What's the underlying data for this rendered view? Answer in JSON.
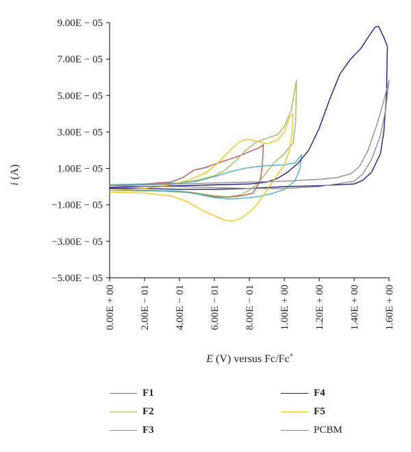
{
  "chart_data": {
    "type": "line",
    "xlabel_parts": [
      "E",
      " (V) versus Fc/Fc",
      "+"
    ],
    "ylabel_parts": [
      "i",
      " (A)"
    ],
    "xlim": [
      0,
      1.6
    ],
    "ylim": [
      -5e-05,
      9e-05
    ],
    "x_ticks": [
      0,
      0.2,
      0.4,
      0.6,
      0.8,
      1.0,
      1.2,
      1.4,
      1.6
    ],
    "x_tick_labels": [
      "0.00E + 00",
      "2.00E − 01",
      "4.00E − 01",
      "6.00E − 01",
      "8.00E − 01",
      "1.00E + 00",
      "1.20E + 00",
      "1.40E + 00",
      "1.60E + 00"
    ],
    "y_ticks": [
      9e-05,
      7e-05,
      5e-05,
      3e-05,
      1e-05,
      -1e-05,
      -3e-05,
      -5e-05
    ],
    "y_tick_labels": [
      "9.00E − 05",
      "7.00E − 05",
      "5.00E − 05",
      "3.00E − 05",
      "1.00E − 05",
      "−1.00E − 05",
      "−3.00E − 05",
      "−5.00E − 05"
    ],
    "grid": false,
    "legend_position": "bottom",
    "series": [
      {
        "name": "F1",
        "color": "#c0504d",
        "points": [
          [
            0,
            1e-06
          ],
          [
            0.2,
            1.5e-06
          ],
          [
            0.35,
            2.5e-06
          ],
          [
            0.42,
            5e-06
          ],
          [
            0.48,
            9e-06
          ],
          [
            0.55,
            1.05e-05
          ],
          [
            0.62,
            1.3e-05
          ],
          [
            0.7,
            1.55e-05
          ],
          [
            0.76,
            1.75e-05
          ],
          [
            0.82,
            2e-05
          ],
          [
            0.86,
            2.15e-05
          ],
          [
            0.88,
            2.3e-05
          ],
          [
            0.875,
            1.2e-05
          ],
          [
            0.865,
            5e-06
          ],
          [
            0.85,
            1e-06
          ],
          [
            0.82,
            -3.5e-06
          ],
          [
            0.76,
            -5e-06
          ],
          [
            0.68,
            -5.8e-06
          ],
          [
            0.6,
            -5.5e-06
          ],
          [
            0.5,
            -3.5e-06
          ],
          [
            0.4,
            -2.5e-06
          ],
          [
            0.2,
            -2e-06
          ],
          [
            0,
            -2e-06
          ]
        ]
      },
      {
        "name": "F2",
        "color": "#9bbb59",
        "points": [
          [
            0,
            5e-07
          ],
          [
            0.2,
            1e-06
          ],
          [
            0.4,
            2e-06
          ],
          [
            0.5,
            3.5e-06
          ],
          [
            0.6,
            6e-06
          ],
          [
            0.66,
            9e-06
          ],
          [
            0.72,
            1.4e-05
          ],
          [
            0.78,
            2e-05
          ],
          [
            0.84,
            2.45e-05
          ],
          [
            0.9,
            2.65e-05
          ],
          [
            0.96,
            2.85e-05
          ],
          [
            1.0,
            3.3e-05
          ],
          [
            1.04,
            4.2e-05
          ],
          [
            1.07,
            5.85e-05
          ],
          [
            1.065,
            3.5e-05
          ],
          [
            1.05,
            2.4e-05
          ],
          [
            1.0,
            1.8e-05
          ],
          [
            0.95,
            1.4e-05
          ],
          [
            0.9,
            8e-06
          ],
          [
            0.85,
            2e-06
          ],
          [
            0.8,
            -2e-06
          ],
          [
            0.75,
            -4.5e-06
          ],
          [
            0.68,
            -5.5e-06
          ],
          [
            0.6,
            -5e-06
          ],
          [
            0.5,
            -3.5e-06
          ],
          [
            0.3,
            -2.5e-06
          ],
          [
            0,
            -2e-06
          ]
        ]
      },
      {
        "name": "F3",
        "color": "#4bacc6",
        "points": [
          [
            0,
            1e-06
          ],
          [
            0.2,
            1.5e-06
          ],
          [
            0.4,
            2e-06
          ],
          [
            0.5,
            3e-06
          ],
          [
            0.6,
            5.5e-06
          ],
          [
            0.7,
            8.5e-06
          ],
          [
            0.8,
            1.05e-05
          ],
          [
            0.9,
            1.15e-05
          ],
          [
            1.0,
            1.2e-05
          ],
          [
            1.06,
            1.3e-05
          ],
          [
            1.1,
            1.75e-05
          ],
          [
            1.09,
            1e-05
          ],
          [
            1.06,
            3e-06
          ],
          [
            1.0,
            -1.5e-06
          ],
          [
            0.94,
            -3.5e-06
          ],
          [
            0.85,
            -5.5e-06
          ],
          [
            0.75,
            -6.5e-06
          ],
          [
            0.68,
            -6.8e-06
          ],
          [
            0.6,
            -6e-06
          ],
          [
            0.5,
            -4e-06
          ],
          [
            0.4,
            -2.5e-06
          ],
          [
            0.2,
            -2e-06
          ],
          [
            0,
            -2e-06
          ]
        ]
      },
      {
        "name": "F4",
        "color": "#1f1a8c",
        "points": [
          [
            0,
            -5e-07
          ],
          [
            0.2,
            0
          ],
          [
            0.4,
            5e-07
          ],
          [
            0.6,
            1e-06
          ],
          [
            0.8,
            1.5e-06
          ],
          [
            0.9,
            2.5e-06
          ],
          [
            0.96,
            4.5e-06
          ],
          [
            1.02,
            8e-06
          ],
          [
            1.08,
            1.3e-05
          ],
          [
            1.14,
            2e-05
          ],
          [
            1.2,
            3.2e-05
          ],
          [
            1.26,
            4.8e-05
          ],
          [
            1.32,
            6.2e-05
          ],
          [
            1.38,
            7e-05
          ],
          [
            1.44,
            7.6e-05
          ],
          [
            1.48,
            8.2e-05
          ],
          [
            1.52,
            8.75e-05
          ],
          [
            1.54,
            8.8e-05
          ],
          [
            1.57,
            8.2e-05
          ],
          [
            1.59,
            7.7e-05
          ],
          [
            1.585,
            5e-05
          ],
          [
            1.57,
            3e-05
          ],
          [
            1.55,
            1.8e-05
          ],
          [
            1.5,
            8e-06
          ],
          [
            1.45,
            3.5e-06
          ],
          [
            1.4,
            1.5e-06
          ],
          [
            1.2,
            5e-07
          ],
          [
            1.0,
            0
          ],
          [
            0.8,
            -1e-06
          ],
          [
            0.6,
            -1.5e-06
          ],
          [
            0.4,
            -1.5e-06
          ],
          [
            0.2,
            -1e-06
          ],
          [
            0,
            -1e-06
          ]
        ]
      },
      {
        "name": "F5",
        "color": "#f2c314",
        "points": [
          [
            0,
            -2e-06
          ],
          [
            0.2,
            -1e-06
          ],
          [
            0.35,
            1e-06
          ],
          [
            0.45,
            3.5e-06
          ],
          [
            0.55,
            7.5e-06
          ],
          [
            0.62,
            1.3e-05
          ],
          [
            0.68,
            1.9e-05
          ],
          [
            0.74,
            2.45e-05
          ],
          [
            0.79,
            2.6e-05
          ],
          [
            0.84,
            2.5e-05
          ],
          [
            0.9,
            2.35e-05
          ],
          [
            0.96,
            2.55e-05
          ],
          [
            1.0,
            3e-05
          ],
          [
            1.03,
            3.8e-05
          ],
          [
            1.05,
            4e-05
          ],
          [
            1.045,
            3e-05
          ],
          [
            1.03,
            2e-05
          ],
          [
            1.0,
            1.2e-05
          ],
          [
            0.95,
            5e-06
          ],
          [
            0.9,
            -2e-06
          ],
          [
            0.85,
            -9e-06
          ],
          [
            0.8,
            -1.4e-05
          ],
          [
            0.75,
            -1.75e-05
          ],
          [
            0.7,
            -1.9e-05
          ],
          [
            0.65,
            -1.8e-05
          ],
          [
            0.55,
            -1.4e-05
          ],
          [
            0.45,
            -8.5e-06
          ],
          [
            0.35,
            -5e-06
          ],
          [
            0.2,
            -3.5e-06
          ],
          [
            0,
            -3e-06
          ]
        ]
      },
      {
        "name": "PCBM",
        "color": "#8c8c8c",
        "points": [
          [
            0,
            5e-07
          ],
          [
            0.2,
            1e-06
          ],
          [
            0.4,
            1.5e-06
          ],
          [
            0.6,
            2e-06
          ],
          [
            0.8,
            2.5e-06
          ],
          [
            1.0,
            3e-06
          ],
          [
            1.2,
            4e-06
          ],
          [
            1.3,
            5e-06
          ],
          [
            1.38,
            7e-06
          ],
          [
            1.43,
            1.1e-05
          ],
          [
            1.48,
            2e-05
          ],
          [
            1.53,
            3.4e-05
          ],
          [
            1.57,
            4.7e-05
          ],
          [
            1.6,
            5.85e-05
          ],
          [
            1.58,
            4.2e-05
          ],
          [
            1.55,
            2.8e-05
          ],
          [
            1.5,
            1.5e-05
          ],
          [
            1.45,
            7e-06
          ],
          [
            1.4,
            3e-06
          ],
          [
            1.2,
            0
          ],
          [
            1.0,
            -1e-06
          ],
          [
            0.8,
            -1e-06
          ],
          [
            0.6,
            -5e-07
          ],
          [
            0.4,
            0
          ],
          [
            0.2,
            0
          ],
          [
            0,
            5e-07
          ]
        ]
      }
    ]
  },
  "legend": [
    {
      "label": "F1",
      "color": "#c0504d",
      "bold": true
    },
    {
      "label": "F4",
      "color": "#1f1a8c",
      "bold": true
    },
    {
      "label": "F2",
      "color": "#9bbb59",
      "bold": true
    },
    {
      "label": "F5",
      "color": "#f2c314",
      "bold": true
    },
    {
      "label": "F3",
      "color": "#4bacc6",
      "bold": true
    },
    {
      "label": "PCBM",
      "color": "#8c8c8c",
      "bold": false
    }
  ]
}
